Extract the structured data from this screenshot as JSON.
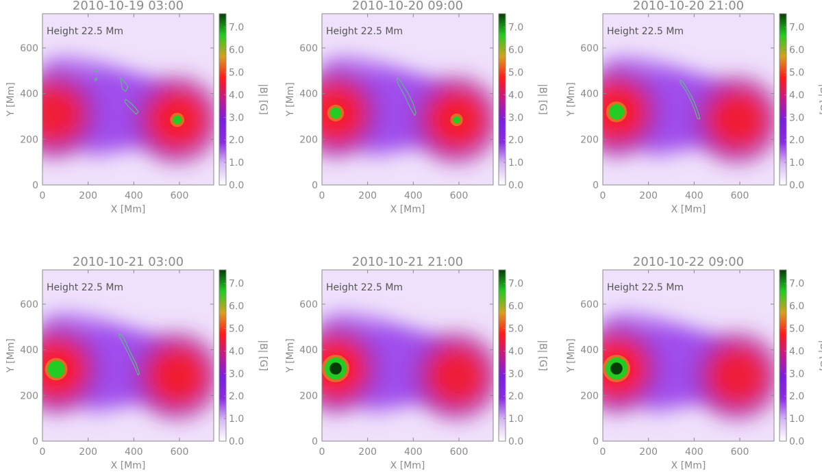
{
  "figure": {
    "colorbar_label": "|B| [G]",
    "colors": {
      "axis": "#8a8a8a",
      "contour": "#5fb88a",
      "cmap": [
        "#ffffff",
        "#d7b8f5",
        "#8a2be2",
        "#7a1fe0",
        "#c21a8c",
        "#ff1a1a",
        "#d7a020",
        "#22cc22",
        "#063d06"
      ]
    }
  },
  "chart_data": [
    {
      "type": "heatmap",
      "title": "2010-10-19 03:00",
      "annotation": "Height 22.5 Mm",
      "xlabel": "X [Mm]",
      "ylabel": "Y [Mm]",
      "xlim": [
        0,
        750
      ],
      "ylim": [
        0,
        750
      ],
      "xticks": [
        "0",
        "200",
        "400",
        "600"
      ],
      "yticks": [
        "0",
        "200",
        "400",
        "600"
      ],
      "colorbar": {
        "label": "|B| [G]",
        "range": [
          0,
          7.6
        ],
        "ticks": [
          "0.0",
          "1.0",
          "2.0",
          "3.0",
          "4.0",
          "5.0",
          "6.0",
          "7.0"
        ]
      },
      "peak_left": {
        "x": 50,
        "y": 310,
        "B": 4.8
      },
      "peak_right": {
        "x": 590,
        "y": 285,
        "B": 6.0
      },
      "contours": [
        [
          [
            340,
            470
          ],
          [
            360,
            450
          ],
          [
            375,
            430
          ],
          [
            365,
            410
          ],
          [
            350,
            420
          ],
          [
            345,
            445
          ]
        ],
        [
          [
            365,
            375
          ],
          [
            385,
            360
          ],
          [
            405,
            340
          ],
          [
            420,
            320
          ],
          [
            410,
            310
          ],
          [
            395,
            325
          ],
          [
            375,
            345
          ],
          [
            360,
            365
          ]
        ],
        [
          [
            228,
            500
          ],
          [
            236,
            506
          ],
          [
            240,
            500
          ],
          [
            232,
            494
          ]
        ],
        [
          [
            228,
            462
          ],
          [
            236,
            468
          ],
          [
            240,
            462
          ],
          [
            232,
            456
          ]
        ]
      ]
    },
    {
      "type": "heatmap",
      "title": "2010-10-20 09:00",
      "annotation": "Height 22.5 Mm",
      "xlabel": "X [Mm]",
      "ylabel": "Y [Mm]",
      "xlim": [
        0,
        750
      ],
      "ylim": [
        0,
        750
      ],
      "xticks": [
        "0",
        "200",
        "400",
        "600"
      ],
      "yticks": [
        "0",
        "200",
        "400",
        "600"
      ],
      "colorbar": {
        "label": "|B| [G]",
        "range": [
          0,
          7.6
        ],
        "ticks": [
          "0.0",
          "1.0",
          "2.0",
          "3.0",
          "4.0",
          "5.0",
          "6.0",
          "7.0"
        ]
      },
      "peak_left": {
        "x": 60,
        "y": 315,
        "B": 6.3
      },
      "peak_right": {
        "x": 590,
        "y": 285,
        "B": 5.8
      },
      "contours": [
        [
          [
            330,
            470
          ],
          [
            345,
            455
          ],
          [
            360,
            430
          ],
          [
            378,
            400
          ],
          [
            398,
            360
          ],
          [
            412,
            315
          ],
          [
            406,
            305
          ],
          [
            388,
            335
          ],
          [
            370,
            375
          ],
          [
            352,
            410
          ],
          [
            335,
            440
          ],
          [
            328,
            460
          ]
        ]
      ]
    },
    {
      "type": "heatmap",
      "title": "2010-10-20 21:00",
      "annotation": "Height 22.5 Mm",
      "xlabel": "X [Mm]",
      "ylabel": "Y [Mm]",
      "xlim": [
        0,
        750
      ],
      "ylim": [
        0,
        750
      ],
      "xticks": [
        "0",
        "200",
        "400",
        "600"
      ],
      "yticks": [
        "0",
        "200",
        "400",
        "600"
      ],
      "colorbar": {
        "label": "|B| [G]",
        "range": [
          0,
          7.6
        ],
        "ticks": [
          "0.0",
          "1.0",
          "2.0",
          "3.0",
          "4.0",
          "5.0",
          "6.0",
          "7.0"
        ]
      },
      "peak_left": {
        "x": 60,
        "y": 320,
        "B": 6.8
      },
      "peak_right": {
        "x": 590,
        "y": 285,
        "B": 5.2
      },
      "contours": [
        [
          [
            340,
            460
          ],
          [
            355,
            445
          ],
          [
            370,
            420
          ],
          [
            385,
            395
          ],
          [
            402,
            360
          ],
          [
            420,
            310
          ],
          [
            425,
            290
          ],
          [
            415,
            290
          ],
          [
            402,
            330
          ],
          [
            385,
            370
          ],
          [
            368,
            405
          ],
          [
            352,
            430
          ],
          [
            338,
            450
          ]
        ]
      ]
    },
    {
      "type": "heatmap",
      "title": "2010-10-21 03:00",
      "annotation": "Height 22.5 Mm",
      "xlabel": "X [Mm]",
      "ylabel": "Y [Mm]",
      "xlim": [
        0,
        750
      ],
      "ylim": [
        0,
        750
      ],
      "xticks": [
        "0",
        "200",
        "400",
        "600"
      ],
      "yticks": [
        "0",
        "200",
        "400",
        "600"
      ],
      "colorbar": {
        "label": "|B| [G]",
        "range": [
          0,
          7.6
        ],
        "ticks": [
          "0.0",
          "1.0",
          "2.0",
          "3.0",
          "4.0",
          "5.0",
          "6.0",
          "7.0"
        ]
      },
      "peak_left": {
        "x": 60,
        "y": 315,
        "B": 7.0
      },
      "peak_right": {
        "x": 590,
        "y": 285,
        "B": 5.3
      },
      "contours": [
        [
          [
            335,
            470
          ],
          [
            350,
            460
          ],
          [
            362,
            440
          ],
          [
            375,
            410
          ],
          [
            392,
            375
          ],
          [
            410,
            340
          ],
          [
            425,
            295
          ],
          [
            418,
            290
          ],
          [
            402,
            330
          ],
          [
            385,
            365
          ],
          [
            368,
            400
          ],
          [
            352,
            430
          ],
          [
            338,
            455
          ]
        ]
      ]
    },
    {
      "type": "heatmap",
      "title": "2010-10-21 21:00",
      "annotation": "Height 22.5 Mm",
      "xlabel": "X [Mm]",
      "ylabel": "Y [Mm]",
      "xlim": [
        0,
        750
      ],
      "ylim": [
        0,
        750
      ],
      "xticks": [
        "0",
        "200",
        "400",
        "600"
      ],
      "yticks": [
        "0",
        "200",
        "400",
        "600"
      ],
      "colorbar": {
        "label": "|B| [G]",
        "range": [
          0,
          7.6
        ],
        "ticks": [
          "0.0",
          "1.0",
          "2.0",
          "3.0",
          "4.0",
          "5.0",
          "6.0",
          "7.0"
        ]
      },
      "peak_left": {
        "x": 60,
        "y": 318,
        "B": 7.6
      },
      "peak_right": {
        "x": 590,
        "y": 285,
        "B": 4.6
      },
      "contours": []
    },
    {
      "type": "heatmap",
      "title": "2010-10-22 09:00",
      "annotation": "Height 22.5 Mm",
      "xlabel": "X [Mm]",
      "ylabel": "Y [Mm]",
      "xlim": [
        0,
        750
      ],
      "ylim": [
        0,
        750
      ],
      "xticks": [
        "0",
        "200",
        "400",
        "600"
      ],
      "yticks": [
        "0",
        "200",
        "400",
        "600"
      ],
      "colorbar": {
        "label": "|B| [G]",
        "range": [
          0,
          7.6
        ],
        "ticks": [
          "0.0",
          "1.0",
          "2.0",
          "3.0",
          "4.0",
          "5.0",
          "6.0",
          "7.0"
        ]
      },
      "peak_left": {
        "x": 60,
        "y": 318,
        "B": 7.6
      },
      "peak_right": {
        "x": 590,
        "y": 285,
        "B": 4.5
      },
      "contours": []
    }
  ]
}
